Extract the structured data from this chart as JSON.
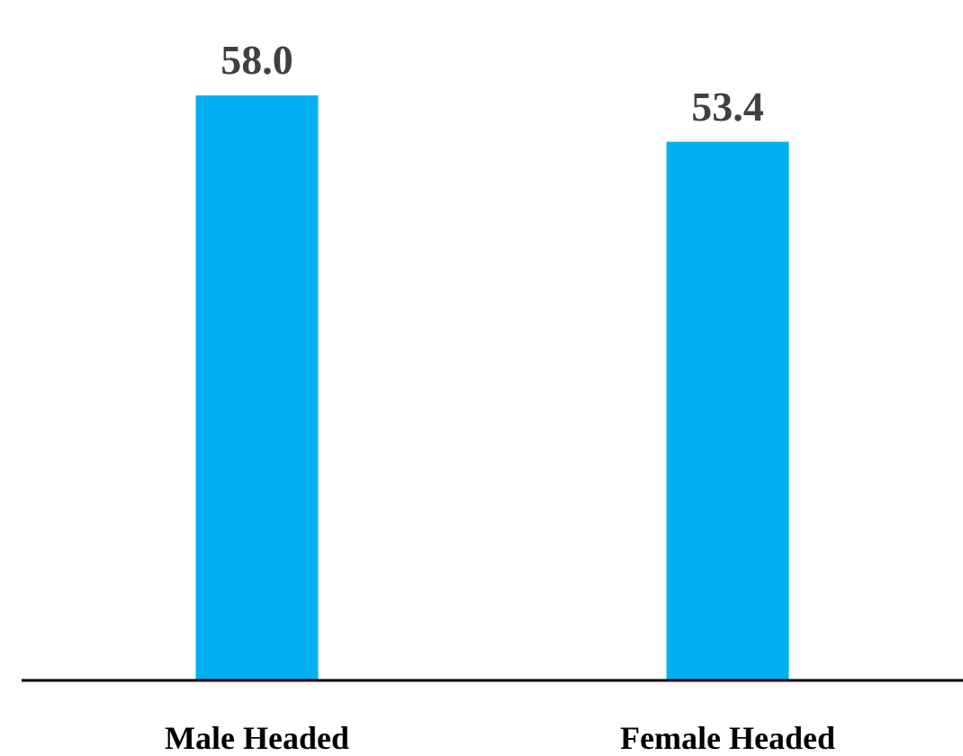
{
  "chart_data": {
    "type": "bar",
    "categories": [
      "Male Headed",
      "Female Headed"
    ],
    "values": [
      58.0,
      53.4
    ],
    "value_labels": [
      "58.0",
      "53.4"
    ],
    "color": "#00b0f0",
    "tick_labels": "x"
  }
}
